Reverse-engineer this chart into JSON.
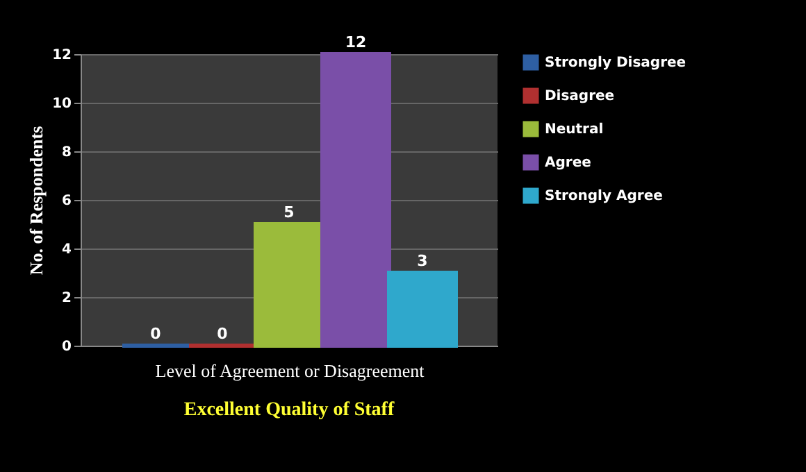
{
  "chart_data": {
    "type": "bar",
    "title": "Excellent Quality of Staff",
    "xlabel": "Level of Agreement or Disagreement",
    "ylabel": "No. of Respondents",
    "categories": [
      null
    ],
    "series": [
      {
        "name": "Strongly Disagree",
        "color": "#2e5fa3",
        "values": [
          0
        ]
      },
      {
        "name": "Disagree",
        "color": "#b03030",
        "values": [
          0
        ]
      },
      {
        "name": "Neutral",
        "color": "#9bbb3b",
        "values": [
          5
        ]
      },
      {
        "name": "Agree",
        "color": "#7a4fa8",
        "values": [
          12
        ]
      },
      {
        "name": "Strongly Agree",
        "color": "#2fa8cc",
        "values": [
          3
        ]
      }
    ],
    "ylim": [
      0,
      12
    ],
    "yticks": [
      0,
      2,
      4,
      6,
      8,
      10,
      12
    ],
    "grid": "y",
    "legend": "right",
    "data_labels": true
  }
}
